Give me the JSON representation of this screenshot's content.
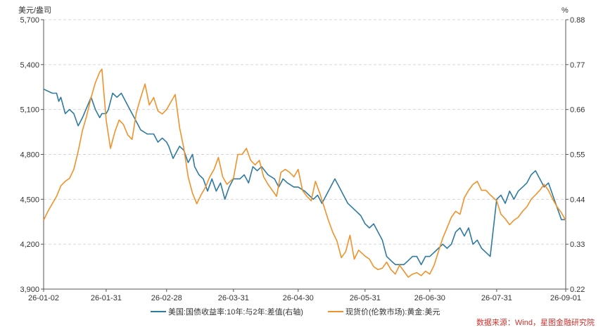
{
  "chart_data": {
    "type": "line",
    "title": "",
    "left_unit": "美元/盎司",
    "right_unit": "%",
    "xlim": [
      "26-01-02",
      "26-09-01"
    ],
    "x_ticks": [
      "26-01-02",
      "26-01-31",
      "26-02-28",
      "26-03-31",
      "26-04-30",
      "26-05-31",
      "26-06-30",
      "26-07-31",
      "26-09-01"
    ],
    "left_axis": {
      "min": 3900,
      "max": 5700,
      "ticks": [
        3900,
        4200,
        4500,
        4800,
        5100,
        5400,
        5700
      ],
      "tick_labels": [
        "3,900",
        "4,200",
        "4,500",
        "4,800",
        "5,100",
        "5,400",
        "5,700"
      ]
    },
    "right_axis": {
      "min": 0.22,
      "max": 0.88,
      "ticks": [
        0.22,
        0.33,
        0.44,
        0.55,
        0.66,
        0.77,
        0.88
      ],
      "tick_labels": [
        "0.22",
        "0.33",
        "0.44",
        "0.55",
        "0.66",
        "0.77",
        "0.88"
      ]
    },
    "grid": "horizontal-dashed",
    "legend_position": "bottom",
    "series": [
      {
        "name": "美国:国债收益率:10年:与2年:差值(右轴)",
        "axis": "right",
        "color": "#2e7aa0",
        "x": [
          "26-01-02",
          "26-01-06",
          "26-01-08",
          "26-01-09",
          "26-01-10",
          "26-01-12",
          "26-01-14",
          "26-01-16",
          "26-01-18",
          "26-01-20",
          "26-01-24",
          "26-01-26",
          "26-01-28",
          "26-01-29",
          "26-01-31",
          "26-02-01",
          "26-02-03",
          "26-02-05",
          "26-02-07",
          "26-02-09",
          "26-02-11",
          "26-02-13",
          "26-02-16",
          "26-02-19",
          "26-02-22",
          "26-02-24",
          "26-02-26",
          "26-02-28",
          "26-03-01",
          "26-03-03",
          "26-03-05",
          "26-03-06",
          "26-03-08",
          "26-03-10",
          "26-03-12",
          "26-03-13",
          "26-03-15",
          "26-03-17",
          "26-03-19",
          "26-03-21",
          "26-03-23",
          "26-03-25",
          "26-03-27",
          "26-03-29",
          "26-03-31",
          "26-04-03",
          "26-04-05",
          "26-04-07",
          "26-04-09",
          "26-04-11",
          "26-04-13",
          "26-04-16",
          "26-04-19",
          "26-04-21",
          "26-04-23",
          "26-04-25",
          "26-04-28",
          "26-04-30",
          "26-05-03",
          "26-05-05",
          "26-05-07",
          "26-05-09",
          "26-05-11",
          "26-05-13",
          "26-05-15",
          "26-05-17",
          "26-05-19",
          "26-05-21",
          "26-05-23",
          "26-05-25",
          "26-05-27",
          "26-05-29",
          "26-05-31",
          "26-06-02",
          "26-06-04",
          "26-06-06",
          "26-06-08",
          "26-06-10",
          "26-06-12",
          "26-06-14",
          "26-06-16",
          "26-06-18",
          "26-06-20",
          "26-06-22",
          "26-06-24",
          "26-06-26",
          "26-06-28",
          "26-06-30",
          "26-07-02",
          "26-07-04",
          "26-07-06",
          "26-07-08",
          "26-07-10",
          "26-07-12",
          "26-07-14",
          "26-07-16",
          "26-07-18",
          "26-07-20",
          "26-07-22",
          "26-07-24",
          "26-07-26",
          "26-07-28",
          "26-07-31",
          "26-08-02",
          "26-08-04",
          "26-08-06",
          "26-08-08",
          "26-08-10",
          "26-08-12",
          "26-08-14",
          "26-08-16",
          "26-08-18",
          "26-08-20",
          "26-08-22",
          "26-08-24",
          "26-08-26",
          "26-08-28",
          "26-08-30",
          "26-09-01"
        ],
        "values": [
          0.71,
          0.7,
          0.7,
          0.68,
          0.69,
          0.65,
          0.66,
          0.65,
          0.62,
          0.64,
          0.69,
          0.66,
          0.64,
          0.65,
          0.65,
          0.66,
          0.7,
          0.69,
          0.7,
          0.68,
          0.66,
          0.64,
          0.61,
          0.6,
          0.6,
          0.58,
          0.59,
          0.58,
          0.57,
          0.54,
          0.56,
          0.57,
          0.56,
          0.53,
          0.55,
          0.52,
          0.5,
          0.49,
          0.46,
          0.49,
          0.46,
          0.48,
          0.44,
          0.47,
          0.49,
          0.49,
          0.5,
          0.48,
          0.52,
          0.51,
          0.52,
          0.5,
          0.49,
          0.47,
          0.49,
          0.48,
          0.47,
          0.47,
          0.46,
          0.45,
          0.44,
          0.45,
          0.43,
          0.45,
          0.47,
          0.49,
          0.47,
          0.45,
          0.43,
          0.42,
          0.41,
          0.4,
          0.38,
          0.37,
          0.38,
          0.36,
          0.34,
          0.3,
          0.29,
          0.28,
          0.28,
          0.28,
          0.29,
          0.3,
          0.3,
          0.28,
          0.3,
          0.3,
          0.31,
          0.32,
          0.33,
          0.32,
          0.33,
          0.36,
          0.37,
          0.35,
          0.37,
          0.33,
          0.34,
          0.32,
          0.31,
          0.3,
          0.44,
          0.45,
          0.43,
          0.46,
          0.44,
          0.46,
          0.47,
          0.48,
          0.5,
          0.51,
          0.49,
          0.47,
          0.48,
          0.45,
          0.42,
          0.39,
          0.39
        ]
      },
      {
        "name": "现货价(伦敦市场):黄金:美元",
        "axis": "left",
        "color": "#f0922b",
        "x": [
          "26-01-02",
          "26-01-04",
          "26-01-06",
          "26-01-08",
          "26-01-10",
          "26-01-12",
          "26-01-14",
          "26-01-16",
          "26-01-18",
          "26-01-20",
          "26-01-22",
          "26-01-24",
          "26-01-26",
          "26-01-28",
          "26-01-29",
          "26-01-31",
          "26-02-02",
          "26-02-04",
          "26-02-06",
          "26-02-08",
          "26-02-10",
          "26-02-12",
          "26-02-14",
          "26-02-16",
          "26-02-18",
          "26-02-20",
          "26-02-22",
          "26-02-24",
          "26-02-26",
          "26-02-28",
          "26-03-02",
          "26-03-04",
          "26-03-06",
          "26-03-08",
          "26-03-10",
          "26-03-12",
          "26-03-14",
          "26-03-16",
          "26-03-18",
          "26-03-20",
          "26-03-22",
          "26-03-24",
          "26-03-26",
          "26-03-28",
          "26-03-31",
          "26-04-02",
          "26-04-04",
          "26-04-06",
          "26-04-08",
          "26-04-10",
          "26-04-12",
          "26-04-14",
          "26-04-16",
          "26-04-18",
          "26-04-20",
          "26-04-22",
          "26-04-24",
          "26-04-26",
          "26-04-28",
          "26-04-30",
          "26-05-02",
          "26-05-04",
          "26-05-06",
          "26-05-08",
          "26-05-10",
          "26-05-12",
          "26-05-14",
          "26-05-16",
          "26-05-18",
          "26-05-20",
          "26-05-22",
          "26-05-24",
          "26-05-26",
          "26-05-28",
          "26-05-31",
          "26-06-02",
          "26-06-04",
          "26-06-06",
          "26-06-08",
          "26-06-10",
          "26-06-12",
          "26-06-14",
          "26-06-16",
          "26-06-18",
          "26-06-20",
          "26-06-22",
          "26-06-24",
          "26-06-26",
          "26-06-28",
          "26-06-30",
          "26-07-02",
          "26-07-04",
          "26-07-06",
          "26-07-08",
          "26-07-10",
          "26-07-12",
          "26-07-14",
          "26-07-16",
          "26-07-18",
          "26-07-20",
          "26-07-22",
          "26-07-24",
          "26-07-26",
          "26-07-28",
          "26-07-31",
          "26-08-02",
          "26-08-04",
          "26-08-06",
          "26-08-08",
          "26-08-10",
          "26-08-12",
          "26-08-14",
          "26-08-16",
          "26-08-18",
          "26-08-20",
          "26-08-22",
          "26-08-24",
          "26-08-26",
          "26-08-28",
          "26-08-30",
          "26-09-01"
        ],
        "values": [
          4360,
          4420,
          4470,
          4520,
          4590,
          4620,
          4640,
          4700,
          4820,
          4960,
          5060,
          5180,
          5280,
          5350,
          5370,
          5030,
          4840,
          4950,
          5030,
          5000,
          4930,
          4900,
          5080,
          5180,
          5270,
          5130,
          5180,
          5090,
          5070,
          5100,
          5150,
          5200,
          4980,
          4840,
          4650,
          4540,
          4470,
          4530,
          4580,
          4650,
          4700,
          4780,
          4650,
          4600,
          4640,
          4800,
          4800,
          4840,
          4760,
          4730,
          4760,
          4650,
          4600,
          4560,
          4520,
          4680,
          4700,
          4680,
          4650,
          4700,
          4560,
          4520,
          4490,
          4620,
          4540,
          4450,
          4360,
          4280,
          4220,
          4110,
          4150,
          4260,
          4100,
          4160,
          4120,
          4100,
          4050,
          4030,
          4040,
          4080,
          4030,
          4000,
          4060,
          4020,
          3980,
          4000,
          4010,
          3990,
          4020,
          4000,
          4060,
          4150,
          4240,
          4310,
          4380,
          4420,
          4400,
          4510,
          4560,
          4600,
          4620,
          4560,
          4560,
          4530,
          4490,
          4400,
          4370,
          4330,
          4360,
          4380,
          4420,
          4450,
          4500,
          4530,
          4560,
          4600,
          4560,
          4500,
          4450,
          4410,
          4360
        ]
      }
    ]
  },
  "source_text": "数据来源：Wind，星图金融研究院"
}
